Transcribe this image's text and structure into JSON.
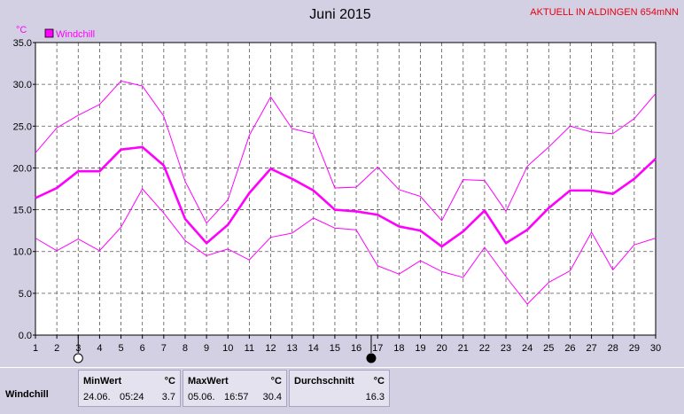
{
  "header": {
    "title": "Juni 2015",
    "station": "AKTUELL IN ALDINGEN 654mNN",
    "unit": "°C"
  },
  "legend": {
    "label": "Windchill",
    "color": "#ff00ff"
  },
  "chart_data": {
    "type": "line",
    "title": "Juni 2015",
    "ylabel": "°C",
    "ylim": [
      0,
      35
    ],
    "yticks": [
      "0.0",
      "5.0",
      "10.0",
      "15.0",
      "20.0",
      "25.0",
      "30.0",
      "35.0"
    ],
    "x": [
      1,
      2,
      3,
      4,
      5,
      6,
      7,
      8,
      9,
      10,
      11,
      12,
      13,
      14,
      15,
      16,
      17,
      18,
      19,
      20,
      21,
      22,
      23,
      24,
      25,
      26,
      27,
      28,
      29,
      30
    ],
    "xlim": [
      1,
      30
    ],
    "grid": true,
    "series": [
      {
        "name": "Windchill",
        "role": "max",
        "color": "#ff00ff",
        "values": [
          21.8,
          24.8,
          26.3,
          27.6,
          30.4,
          29.8,
          26.2,
          18.4,
          13.4,
          16.2,
          23.9,
          28.5,
          24.7,
          24.1,
          17.6,
          17.7,
          20.1,
          17.4,
          16.6,
          13.7,
          18.6,
          18.5,
          14.8,
          20.2,
          22.5,
          25.0,
          24.3,
          24.1,
          25.9,
          28.9
        ]
      },
      {
        "name": "Windchill",
        "role": "mean",
        "color": "#ff00ff",
        "values": [
          16.4,
          17.6,
          19.6,
          19.6,
          22.2,
          22.5,
          20.3,
          13.9,
          11.0,
          13.2,
          17.0,
          19.9,
          18.7,
          17.3,
          15.0,
          14.8,
          14.4,
          13.0,
          12.5,
          10.6,
          12.4,
          14.9,
          11.0,
          12.6,
          15.2,
          17.3,
          17.3,
          16.9,
          18.7,
          21.1
        ]
      },
      {
        "name": "Windchill",
        "role": "min",
        "color": "#ff00ff",
        "values": [
          11.6,
          10.1,
          11.5,
          10.1,
          12.9,
          17.5,
          14.6,
          11.3,
          9.5,
          10.3,
          9.0,
          11.7,
          12.2,
          14.0,
          12.8,
          12.6,
          8.3,
          7.3,
          8.9,
          7.6,
          6.9,
          10.5,
          7.0,
          3.7,
          6.3,
          7.7,
          12.3,
          7.8,
          10.8,
          11.6
        ]
      }
    ],
    "markers": [
      {
        "x": 3,
        "symbol": "full-moon"
      },
      {
        "x": 16.7,
        "symbol": "new-moon"
      }
    ],
    "legend_position": "top-left"
  },
  "stats": {
    "row_label": "Windchill",
    "min": {
      "header": "MinWert",
      "unit": "°C",
      "date": "24.06.",
      "time": "05:24",
      "value": "3.7"
    },
    "max": {
      "header": "MaxWert",
      "unit": "°C",
      "date": "05.06.",
      "time": "16:57",
      "value": "30.4"
    },
    "avg": {
      "header": "Durchschnitt",
      "unit": "°C",
      "value": "16.3"
    }
  }
}
